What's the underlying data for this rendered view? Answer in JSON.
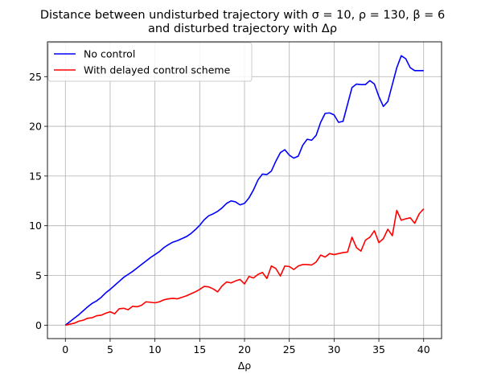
{
  "chart_data": {
    "type": "line",
    "title_line1": "Distance between undisturbed trajectory with σ = 10, ρ = 130, β = 6",
    "title_line2": "and disturbed trajectory with Δρ",
    "xlabel": "Δρ",
    "ylabel": "",
    "xlim": [
      -2,
      42
    ],
    "ylim": [
      -1.35,
      28.5
    ],
    "xticks": [
      0,
      5,
      10,
      15,
      20,
      25,
      30,
      35,
      40
    ],
    "yticks": [
      0,
      5,
      10,
      15,
      20,
      25
    ],
    "grid": true,
    "legend_position": "top-left",
    "series": [
      {
        "name": "No control",
        "color": "#0000ff",
        "x": [
          0,
          0.5,
          1,
          1.5,
          2,
          2.5,
          3,
          3.5,
          4,
          4.5,
          5,
          5.5,
          6,
          6.5,
          7,
          7.5,
          8,
          8.5,
          9,
          9.5,
          10,
          10.5,
          11,
          11.5,
          12,
          12.5,
          13,
          13.5,
          14,
          14.5,
          15,
          15.5,
          16,
          16.5,
          17,
          17.5,
          18,
          18.5,
          19,
          19.5,
          20,
          20.5,
          21,
          21.5,
          22,
          22.5,
          23,
          23.5,
          24,
          24.5,
          25,
          25.5,
          26,
          26.5,
          27,
          27.5,
          28,
          28.5,
          29,
          29.5,
          30,
          30.5,
          31,
          31.5,
          32,
          32.5,
          33,
          33.5,
          34,
          34.5,
          35,
          35.5,
          36,
          36.5,
          37,
          37.5,
          38,
          38.5,
          39,
          39.5,
          40
        ],
        "y": [
          0,
          0.35,
          0.7,
          1.05,
          1.45,
          1.85,
          2.2,
          2.45,
          2.8,
          3.25,
          3.6,
          4.0,
          4.4,
          4.8,
          5.1,
          5.4,
          5.75,
          6.1,
          6.45,
          6.8,
          7.1,
          7.4,
          7.8,
          8.1,
          8.35,
          8.5,
          8.7,
          8.9,
          9.2,
          9.6,
          10.05,
          10.6,
          11.0,
          11.2,
          11.45,
          11.8,
          12.25,
          12.5,
          12.4,
          12.1,
          12.25,
          12.8,
          13.6,
          14.6,
          15.2,
          15.15,
          15.5,
          16.5,
          17.35,
          17.65,
          17.1,
          16.8,
          17.0,
          18.1,
          18.7,
          18.6,
          19.1,
          20.4,
          21.3,
          21.35,
          21.15,
          20.4,
          20.5,
          22.2,
          23.9,
          24.25,
          24.2,
          24.2,
          24.6,
          24.25,
          23.0,
          22.0,
          22.5,
          24.2,
          25.9,
          27.1,
          26.8,
          25.9,
          25.6,
          25.6,
          25.6
        ]
      },
      {
        "name": "With delayed control scheme",
        "color": "#ff0000",
        "x": [
          0,
          0.5,
          1,
          1.5,
          2,
          2.5,
          3,
          3.5,
          4,
          4.5,
          5,
          5.5,
          6,
          6.5,
          7,
          7.5,
          8,
          8.5,
          9,
          9.5,
          10,
          10.5,
          11,
          11.5,
          12,
          12.5,
          13,
          13.5,
          14,
          14.5,
          15,
          15.5,
          16,
          16.5,
          17,
          17.5,
          18,
          18.5,
          19,
          19.5,
          20,
          20.5,
          21,
          21.5,
          22,
          22.5,
          23,
          23.5,
          24,
          24.5,
          25,
          25.5,
          26,
          26.5,
          27,
          27.5,
          28,
          28.5,
          29,
          29.5,
          30,
          30.5,
          31,
          31.5,
          32,
          32.5,
          33,
          33.5,
          34,
          34.5,
          35,
          35.5,
          36,
          36.5,
          37,
          37.5,
          38,
          38.5,
          39,
          39.5,
          40
        ],
        "y": [
          0,
          0.1,
          0.2,
          0.4,
          0.5,
          0.7,
          0.75,
          0.95,
          1.0,
          1.2,
          1.35,
          1.15,
          1.65,
          1.7,
          1.55,
          1.9,
          1.85,
          2.0,
          2.35,
          2.3,
          2.25,
          2.35,
          2.55,
          2.65,
          2.7,
          2.65,
          2.8,
          2.95,
          3.15,
          3.35,
          3.6,
          3.9,
          3.85,
          3.65,
          3.35,
          3.95,
          4.35,
          4.25,
          4.45,
          4.6,
          4.15,
          4.9,
          4.75,
          5.1,
          5.3,
          4.7,
          5.95,
          5.7,
          4.95,
          5.95,
          5.9,
          5.6,
          5.95,
          6.1,
          6.1,
          6.05,
          6.35,
          7.05,
          6.85,
          7.2,
          7.1,
          7.2,
          7.3,
          7.35,
          8.85,
          7.8,
          7.45,
          8.55,
          8.85,
          9.5,
          8.3,
          8.7,
          9.65,
          9.0,
          11.55,
          10.55,
          10.7,
          10.8,
          10.25,
          11.2,
          11.7
        ]
      }
    ]
  }
}
